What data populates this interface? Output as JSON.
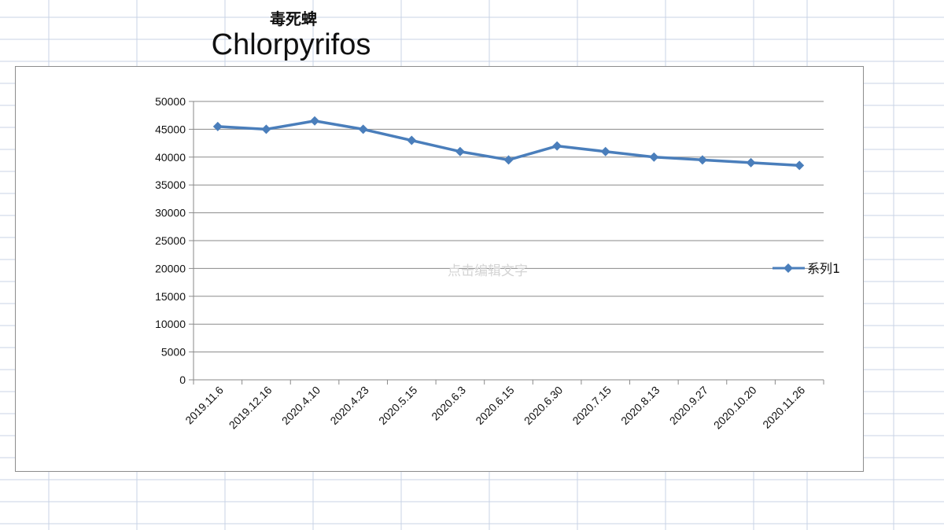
{
  "titles": {
    "cn": "毒死蜱",
    "en": "Chlorpyrifos"
  },
  "watermark": "点击编辑文字",
  "colors": {
    "series": "#4a7ebb",
    "grid": "#8a8a8a",
    "sheet_grid": "#c9d3e6"
  },
  "chart_data": {
    "type": "line",
    "categories": [
      "2019.11.6",
      "2019.12.16",
      "2020.4.10",
      "2020.4.23",
      "2020.5.15",
      "2020.6.3",
      "2020.6.15",
      "2020.6.30",
      "2020.7.15",
      "2020.8.13",
      "2020.9.27",
      "2020.10.20",
      "2020.11.26"
    ],
    "series": [
      {
        "name": "系列1",
        "values": [
          45500,
          45000,
          46500,
          45000,
          43000,
          41000,
          39500,
          42000,
          41000,
          40000,
          39500,
          39000,
          38500
        ],
        "marker": "diamond"
      }
    ],
    "ylim": [
      0,
      50000
    ],
    "y_ticks": [
      0,
      5000,
      10000,
      15000,
      20000,
      25000,
      30000,
      35000,
      40000,
      45000,
      50000
    ],
    "grid": true,
    "legend": "right"
  }
}
